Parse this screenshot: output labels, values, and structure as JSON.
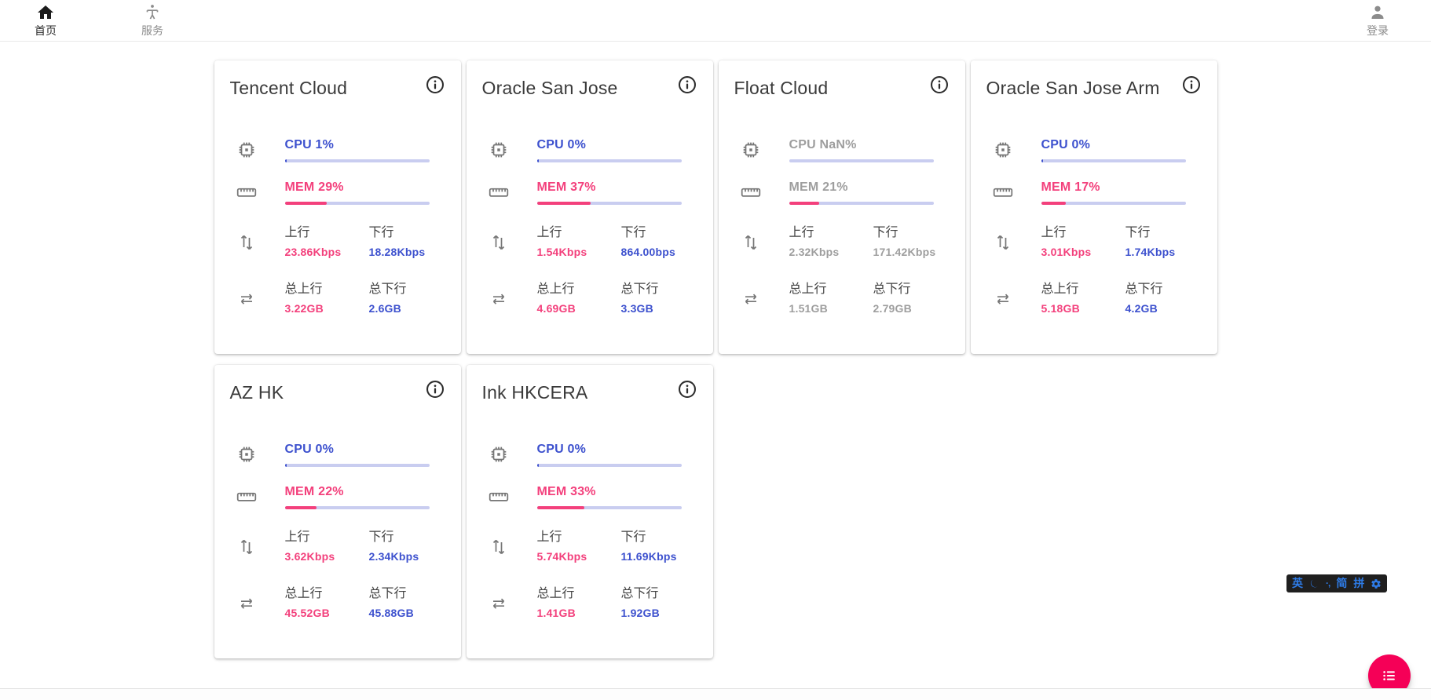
{
  "nav": {
    "home": {
      "label": "首页",
      "icon": "home-icon"
    },
    "services": {
      "label": "服务",
      "icon": "person-standing-icon"
    },
    "login": {
      "label": "登录",
      "icon": "account-icon"
    }
  },
  "labels": {
    "cpu": "CPU",
    "mem": "MEM",
    "up": "上行",
    "down": "下行",
    "total_up": "总上行",
    "total_down": "总下行"
  },
  "servers": [
    {
      "name": "Tencent Cloud",
      "cpu": "1%",
      "cpu_pct": 1,
      "mem": "29%",
      "mem_pct": 29,
      "up": "23.86Kbps",
      "down": "18.28Kbps",
      "total_up": "3.22GB",
      "total_down": "2.6GB",
      "offline": false
    },
    {
      "name": "Oracle San Jose",
      "cpu": "0%",
      "cpu_pct": 0,
      "mem": "37%",
      "mem_pct": 37,
      "up": "1.54Kbps",
      "down": "864.00bps",
      "total_up": "4.69GB",
      "total_down": "3.3GB",
      "offline": false
    },
    {
      "name": "Float Cloud",
      "cpu": "NaN%",
      "cpu_pct": null,
      "mem": "21%",
      "mem_pct": 21,
      "up": "2.32Kbps",
      "down": "171.42Kbps",
      "total_up": "1.51GB",
      "total_down": "2.79GB",
      "offline": true
    },
    {
      "name": "Oracle San Jose Arm",
      "cpu": "0%",
      "cpu_pct": 0,
      "mem": "17%",
      "mem_pct": 17,
      "up": "3.01Kbps",
      "down": "1.74Kbps",
      "total_up": "5.18GB",
      "total_down": "4.2GB",
      "offline": false
    },
    {
      "name": "AZ HK",
      "cpu": "0%",
      "cpu_pct": 0,
      "mem": "22%",
      "mem_pct": 22,
      "up": "3.62Kbps",
      "down": "2.34Kbps",
      "total_up": "45.52GB",
      "total_down": "45.88GB",
      "offline": false
    },
    {
      "name": "Ink HKCERA",
      "cpu": "0%",
      "cpu_pct": 0,
      "mem": "33%",
      "mem_pct": 33,
      "up": "5.74Kbps",
      "down": "11.69Kbps",
      "total_up": "1.41GB",
      "total_down": "1.92GB",
      "offline": false
    }
  ],
  "ime": {
    "items": [
      "英",
      "moon-icon",
      "·,",
      "简",
      "拼",
      "gear-icon"
    ]
  },
  "fab": {
    "icon": "list-icon"
  },
  "colors": {
    "accent_blue": "#3d51ce",
    "accent_pink": "#f3407c",
    "bar_track": "#c9cdf0",
    "offline_gray": "#9e9e9e",
    "fab_pink": "#f50057",
    "ime_blue": "#2e7ce8"
  }
}
